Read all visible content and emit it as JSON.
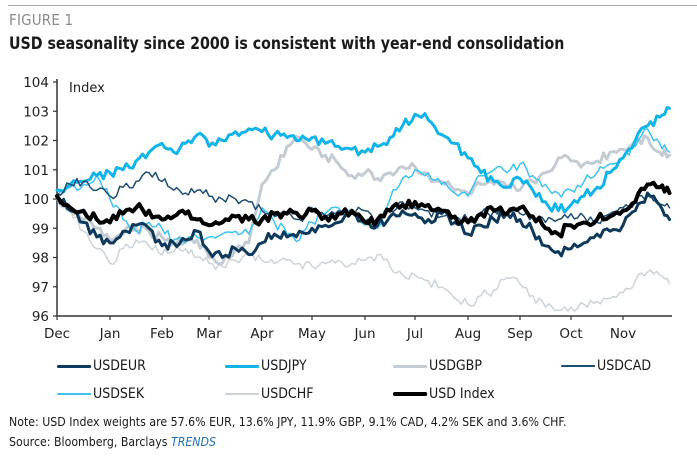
{
  "figure_label": "FIGURE 1",
  "title": "USD seasonality since 2000 is consistent with year-end consolidation",
  "note": "Note: USD Index weights are 57.6% EUR, 13.6% JPY, 11.9% GBP, 9.1% CAD, 4.2% SEK and 3.6% CHF.",
  "source_prefix": "Source: Bloomberg, Barclays ",
  "source_italic": "TRENDS",
  "chart_data": {
    "type": "line",
    "title": "USD seasonality since 2000 is consistent with year-end consolidation",
    "ylabel": "Index",
    "xlabel": "",
    "ylim": [
      96,
      104
    ],
    "yticks": [
      96,
      97,
      98,
      99,
      100,
      101,
      102,
      103,
      104
    ],
    "xlim": [
      0,
      12
    ],
    "xticks": [
      0,
      1,
      2,
      3,
      4,
      5,
      6,
      7,
      8,
      9,
      10,
      11
    ],
    "xtick_labels": [
      "Dec",
      "Jan",
      "Feb",
      "Mar",
      "Apr",
      "May",
      "Jun",
      "Jul",
      "Aug",
      "Sep",
      "Oct",
      "Nov"
    ],
    "grid": false,
    "legend_position": "bottom",
    "x": [
      0,
      0.25,
      0.5,
      0.75,
      1,
      1.25,
      1.5,
      1.75,
      2,
      2.25,
      2.5,
      2.75,
      3,
      3.25,
      3.5,
      3.75,
      4,
      4.25,
      4.5,
      4.75,
      5,
      5.25,
      5.5,
      5.75,
      6,
      6.25,
      6.5,
      6.75,
      7,
      7.25,
      7.5,
      7.75,
      8,
      8.25,
      8.5,
      8.75,
      9,
      9.25,
      9.5,
      9.75,
      10,
      10.25,
      10.5,
      10.75,
      11,
      11.25,
      11.5,
      11.75,
      11.95
    ],
    "series": [
      {
        "name": "USDEUR",
        "color": "#0d3a5c",
        "width": 3,
        "values": [
          100.1,
          99.6,
          99.2,
          98.7,
          98.5,
          98.9,
          99.1,
          99.0,
          98.4,
          98.5,
          98.6,
          98.9,
          98.2,
          98.0,
          98.3,
          98.1,
          98.5,
          98.8,
          98.7,
          98.9,
          99.0,
          99.1,
          99.2,
          99.5,
          99.2,
          99.1,
          99.4,
          99.6,
          99.5,
          99.3,
          99.5,
          99.2,
          98.8,
          99.1,
          99.3,
          99.5,
          99.3,
          98.9,
          98.4,
          98.2,
          98.3,
          98.5,
          98.8,
          98.9,
          99.1,
          99.6,
          100.2,
          99.8,
          99.3
        ]
      },
      {
        "name": "USDJPY",
        "color": "#10b4e8",
        "width": 3,
        "values": [
          100.3,
          100.5,
          100.6,
          100.8,
          100.9,
          101.0,
          101.3,
          101.6,
          101.9,
          101.6,
          101.9,
          102.2,
          101.8,
          102.0,
          102.3,
          102.4,
          102.3,
          102.2,
          102.1,
          102.0,
          102.1,
          101.9,
          101.8,
          101.7,
          101.6,
          101.8,
          102.1,
          102.5,
          102.9,
          102.7,
          102.2,
          101.9,
          101.4,
          100.9,
          100.6,
          100.4,
          100.7,
          100.3,
          99.9,
          99.6,
          99.8,
          100.1,
          100.4,
          100.9,
          101.4,
          102.0,
          102.5,
          102.8,
          103.1
        ]
      },
      {
        "name": "USDGBP",
        "color": "#c3ccd3",
        "width": 3,
        "values": [
          100.1,
          99.7,
          99.3,
          99.0,
          98.6,
          98.8,
          99.0,
          98.9,
          98.7,
          98.5,
          98.6,
          98.6,
          98.0,
          97.8,
          98.3,
          98.5,
          100.5,
          101.0,
          101.8,
          102.1,
          101.7,
          101.5,
          101.2,
          100.8,
          100.9,
          100.7,
          100.9,
          101.1,
          101.1,
          100.8,
          100.6,
          100.3,
          100.2,
          100.5,
          100.5,
          100.4,
          100.3,
          100.6,
          100.9,
          101.4,
          101.3,
          101.2,
          101.3,
          101.6,
          101.7,
          102.0,
          102.1,
          101.6,
          101.5
        ]
      },
      {
        "name": "USDCAD",
        "color": "#1d4e72",
        "width": 1.5,
        "values": [
          100.2,
          100.5,
          100.6,
          100.3,
          100.1,
          100.4,
          100.6,
          100.9,
          100.6,
          100.3,
          100.2,
          100.3,
          100.1,
          100.0,
          100.0,
          99.9,
          99.6,
          99.4,
          99.5,
          99.3,
          99.7,
          99.4,
          99.6,
          99.6,
          99.6,
          99.3,
          99.6,
          99.9,
          99.7,
          99.6,
          99.4,
          99.4,
          99.3,
          99.5,
          99.6,
          99.5,
          99.5,
          99.4,
          99.2,
          99.3,
          99.5,
          99.4,
          99.2,
          99.5,
          99.7,
          99.9,
          100.1,
          99.8,
          99.7
        ]
      },
      {
        "name": "USDSEK",
        "color": "#3ec3ee",
        "width": 1.5,
        "values": [
          100.1,
          100.4,
          100.5,
          100.8,
          100.0,
          99.3,
          98.9,
          99.2,
          99.0,
          98.6,
          98.5,
          98.7,
          98.7,
          98.8,
          98.9,
          98.8,
          99.7,
          99.2,
          98.8,
          98.6,
          99.2,
          99.5,
          99.7,
          99.6,
          99.1,
          99.0,
          100.0,
          100.7,
          101.0,
          100.9,
          100.5,
          100.2,
          100.1,
          100.8,
          101.0,
          100.9,
          101.2,
          100.8,
          100.5,
          100.2,
          100.3,
          100.6,
          100.9,
          101.2,
          101.4,
          101.8,
          102.4,
          101.9,
          101.6
        ]
      },
      {
        "name": "USDCHF",
        "color": "#cbd4da",
        "width": 1.5,
        "values": [
          100.0,
          99.6,
          98.9,
          98.3,
          97.8,
          98.3,
          98.6,
          98.4,
          98.1,
          98.2,
          98.3,
          98.0,
          97.8,
          97.7,
          97.9,
          98.1,
          97.9,
          97.8,
          97.9,
          97.8,
          97.7,
          97.8,
          97.9,
          97.8,
          97.9,
          98.1,
          97.7,
          97.4,
          97.4,
          97.2,
          97.0,
          96.6,
          96.4,
          96.7,
          96.9,
          97.3,
          97.1,
          96.7,
          96.3,
          96.2,
          96.3,
          96.4,
          96.5,
          96.6,
          96.8,
          97.2,
          97.5,
          97.4,
          97.1
        ]
      },
      {
        "name": "USD Index",
        "color": "#000000",
        "width": 4,
        "values": [
          100.1,
          99.7,
          99.6,
          99.3,
          99.2,
          99.5,
          99.7,
          99.6,
          99.3,
          99.4,
          99.5,
          99.3,
          99.1,
          99.2,
          99.4,
          99.3,
          99.3,
          99.5,
          99.5,
          99.4,
          99.6,
          99.4,
          99.5,
          99.6,
          99.2,
          99.3,
          99.6,
          99.8,
          99.9,
          99.8,
          99.6,
          99.4,
          99.2,
          99.5,
          99.6,
          99.5,
          99.7,
          99.4,
          99.0,
          98.8,
          99.1,
          99.2,
          99.3,
          99.4,
          99.6,
          99.9,
          100.5,
          100.4,
          100.2
        ]
      }
    ]
  }
}
